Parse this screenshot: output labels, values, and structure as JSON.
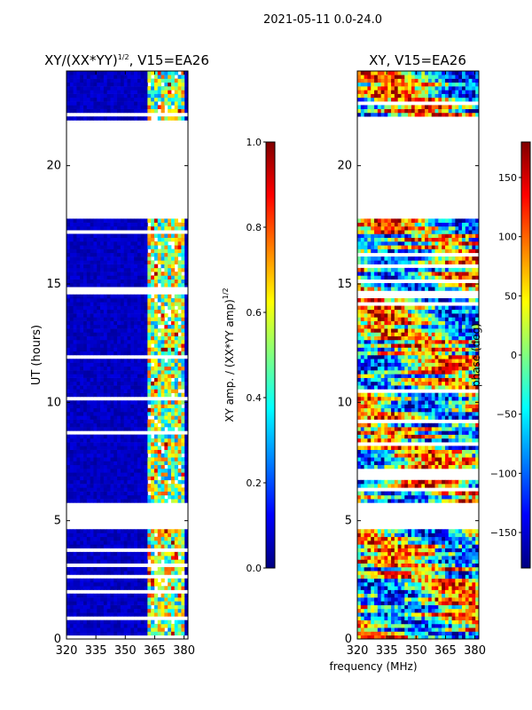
{
  "suptitle": "2021-05-11 0.0-24.0",
  "xlabel": "frequency (MHz)",
  "ylabel": "UT (hours)",
  "colormap": [
    "#000080",
    "#0000ff",
    "#0080ff",
    "#00ffff",
    "#80ff80",
    "#ffff00",
    "#ff8000",
    "#ff0000",
    "#800000"
  ],
  "chart_data": [
    {
      "type": "heatmap",
      "title_main": "XY/(XX*YY)",
      "title_exp": "1/2",
      "title_rest": ", V15=EA26",
      "xlim": [
        320,
        382
      ],
      "xticks": [
        320,
        335,
        350,
        365,
        380
      ],
      "ylim": [
        0,
        24
      ],
      "yticks": [
        0,
        5,
        10,
        15,
        20
      ],
      "data_gaps_hours": [
        [
          4.6,
          5.8
        ],
        [
          17.8,
          22.0
        ]
      ],
      "hot_band_mhz": [
        360,
        380
      ],
      "colorbar": {
        "label_main": "XY amp. / (XX*YY amp)",
        "label_exp": "1/2",
        "range": [
          0.0,
          1.0
        ],
        "ticks": [
          "0.0",
          "0.2",
          "0.4",
          "0.6",
          "0.8",
          "1.0"
        ],
        "tick_values": [
          0.0,
          0.2,
          0.4,
          0.6,
          0.8,
          1.0
        ]
      }
    },
    {
      "type": "heatmap",
      "title_main": "XY, V15=EA26",
      "xlim": [
        320,
        382
      ],
      "xticks": [
        320,
        335,
        350,
        365,
        380
      ],
      "ylim": [
        0,
        24
      ],
      "yticks": [
        0,
        5,
        10,
        15,
        20
      ],
      "data_gaps_hours": [
        [
          4.6,
          5.8
        ],
        [
          17.8,
          22.0
        ]
      ],
      "colorbar": {
        "label": "phase (deg)",
        "range": [
          -180,
          180
        ],
        "ticks": [
          "150",
          "100",
          "50",
          "0",
          "−50",
          "−100",
          "−150"
        ],
        "tick_values": [
          150,
          100,
          50,
          0,
          -50,
          -100,
          -150
        ]
      }
    }
  ]
}
